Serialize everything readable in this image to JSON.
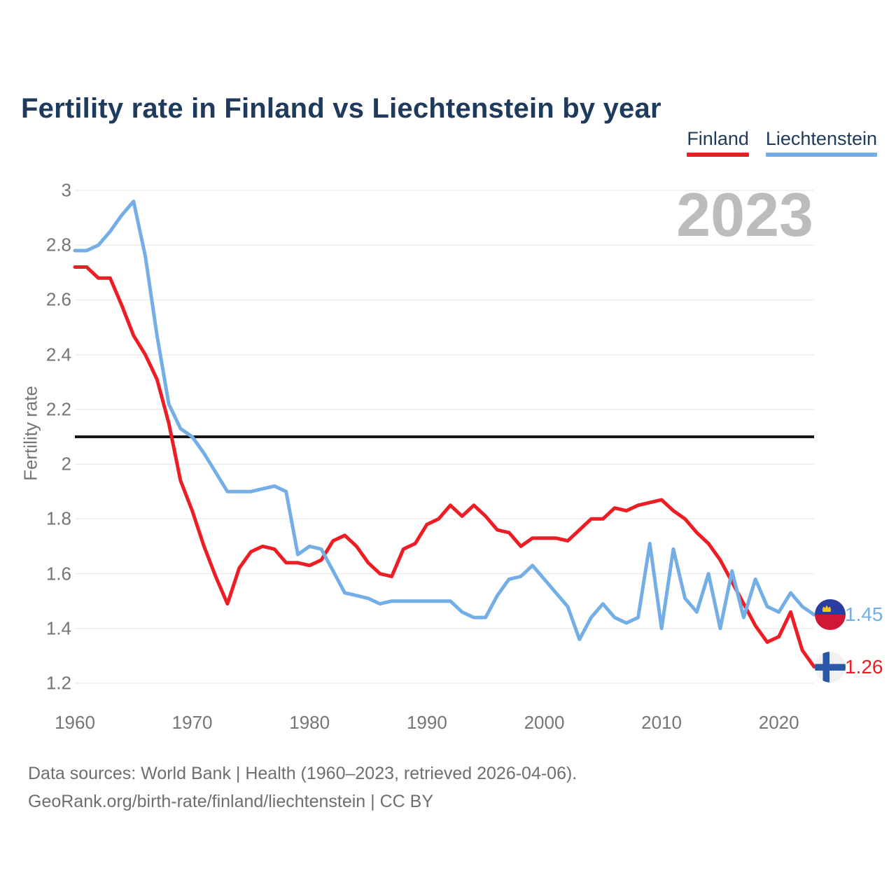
{
  "header": {
    "title": "Fertility rate in Finland vs Liechtenstein by year"
  },
  "legend": {
    "items": [
      {
        "label": "Finland",
        "color": "#ee1c23"
      },
      {
        "label": "Liechtenstein",
        "color": "#73aee6"
      }
    ]
  },
  "watermark": "2023",
  "y_axis_label": "Fertility rate",
  "end_labels": {
    "liechtenstein": {
      "value": "1.45",
      "color": "#73aee6",
      "flag": "liechtenstein-flag"
    },
    "finland": {
      "value": "1.26",
      "color": "#ee1c23",
      "flag": "finland-flag"
    }
  },
  "footer": {
    "line1": "Data sources: World Bank | Health (1960–2023, retrieved 2026-04-06).",
    "line2": "GeoRank.org/birth-rate/finland/liechtenstein | CC BY"
  },
  "colors": {
    "title": "#1e3a5c",
    "finland": "#ee1c23",
    "liechtenstein": "#73aee6",
    "grid": "#ececec",
    "baseline": "#141414",
    "tick_text": "#757575",
    "watermark": "#bcbcbc"
  },
  "chart_data": {
    "type": "line",
    "title": "Fertility rate in Finland vs Liechtenstein by year",
    "xlabel": "",
    "ylabel": "Fertility rate",
    "x_start": 1960,
    "x_end": 2023,
    "x_ticks": [
      1960,
      1970,
      1980,
      1990,
      2000,
      2010,
      2020
    ],
    "y_ticks": [
      3,
      2.8,
      2.6,
      2.4,
      2.2,
      2,
      1.8,
      1.6,
      1.4,
      1.2
    ],
    "ylim": [
      1.2,
      3.0
    ],
    "grid": true,
    "legend_position": "top-right",
    "baseline": 2.1,
    "series": [
      {
        "name": "Finland",
        "color": "#ee1c23",
        "values": [
          2.72,
          2.72,
          2.68,
          2.68,
          2.58,
          2.47,
          2.4,
          2.31,
          2.15,
          1.94,
          1.83,
          1.7,
          1.59,
          1.49,
          1.62,
          1.68,
          1.7,
          1.69,
          1.64,
          1.64,
          1.63,
          1.65,
          1.72,
          1.74,
          1.7,
          1.64,
          1.6,
          1.59,
          1.69,
          1.71,
          1.78,
          1.8,
          1.85,
          1.81,
          1.85,
          1.81,
          1.76,
          1.75,
          1.7,
          1.73,
          1.73,
          1.73,
          1.72,
          1.76,
          1.8,
          1.8,
          1.84,
          1.83,
          1.85,
          1.86,
          1.87,
          1.83,
          1.8,
          1.75,
          1.71,
          1.65,
          1.57,
          1.49,
          1.41,
          1.35,
          1.37,
          1.46,
          1.32,
          1.26
        ]
      },
      {
        "name": "Liechtenstein",
        "color": "#73aee6",
        "values": [
          2.78,
          2.78,
          2.8,
          2.85,
          2.91,
          2.96,
          2.76,
          2.47,
          2.22,
          2.13,
          2.1,
          2.04,
          1.97,
          1.9,
          1.9,
          1.9,
          1.91,
          1.92,
          1.9,
          1.67,
          1.7,
          1.69,
          1.61,
          1.53,
          1.52,
          1.51,
          1.49,
          1.5,
          1.5,
          1.5,
          1.5,
          1.5,
          1.5,
          1.46,
          1.44,
          1.44,
          1.52,
          1.58,
          1.59,
          1.63,
          1.58,
          1.53,
          1.48,
          1.36,
          1.44,
          1.49,
          1.44,
          1.42,
          1.44,
          1.71,
          1.4,
          1.69,
          1.51,
          1.46,
          1.6,
          1.4,
          1.61,
          1.44,
          1.58,
          1.48,
          1.46,
          1.53,
          1.48,
          1.45
        ]
      }
    ]
  }
}
